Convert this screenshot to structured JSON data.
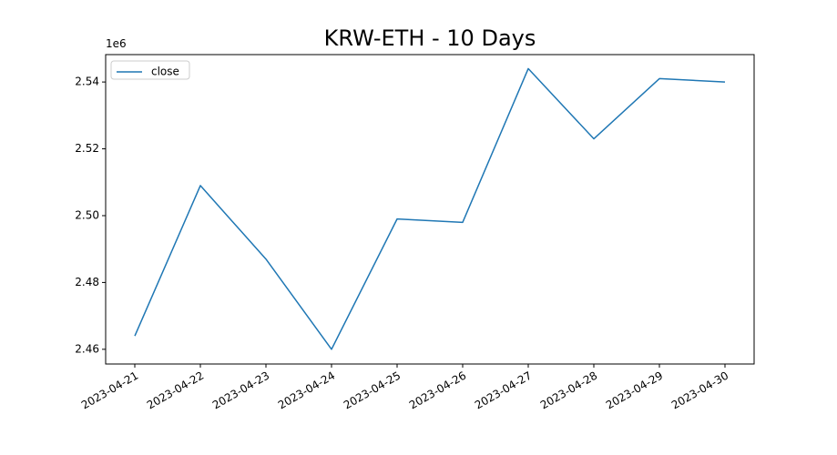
{
  "chart_data": {
    "type": "line",
    "title": "KRW-ETH - 10 Days",
    "x": [
      "2023-04-21",
      "2023-04-22",
      "2023-04-23",
      "2023-04-24",
      "2023-04-25",
      "2023-04-26",
      "2023-04-27",
      "2023-04-28",
      "2023-04-29",
      "2023-04-30"
    ],
    "series": [
      {
        "name": "close",
        "color": "#1f77b4",
        "values": [
          2464000,
          2509000,
          2487000,
          2460000,
          2499000,
          2498000,
          2544000,
          2523000,
          2541000,
          2540000
        ]
      }
    ],
    "xlim": [
      "2023-04-21",
      "2023-04-30"
    ],
    "xticks": [
      "2023-04-21",
      "2023-04-22",
      "2023-04-23",
      "2023-04-24",
      "2023-04-25",
      "2023-04-26",
      "2023-04-27",
      "2023-04-28",
      "2023-04-29",
      "2023-04-30"
    ],
    "ylim": [
      2455600,
      2548200
    ],
    "yticks": [
      {
        "value": 2460000,
        "label": "2.46"
      },
      {
        "value": 2480000,
        "label": "2.48"
      },
      {
        "value": 2500000,
        "label": "2.50"
      },
      {
        "value": 2520000,
        "label": "2.52"
      },
      {
        "value": 2540000,
        "label": "2.54"
      }
    ],
    "y_offset_label": "1e6",
    "legend": "upper left",
    "grid": false
  }
}
